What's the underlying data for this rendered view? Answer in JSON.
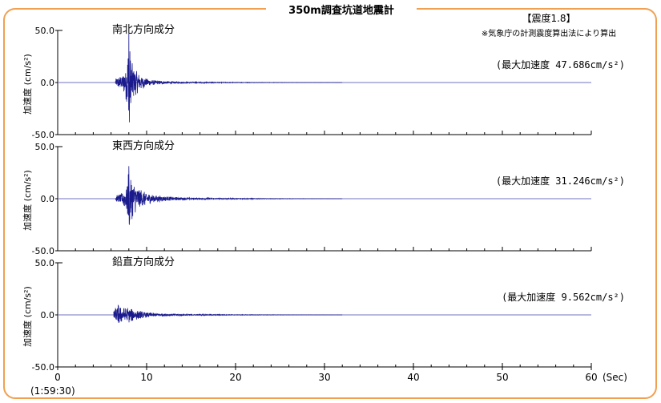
{
  "title": "350m調査坑道地震計",
  "intensity": {
    "label": "【震度1.8】",
    "note": "※気象庁の計測震度算出法により算出"
  },
  "colors": {
    "frame": "#f0a050",
    "waveform": "#1a1a8c",
    "baseline": "#7070c0",
    "grid": "#000000"
  },
  "x_axis": {
    "ticks": [
      "0",
      "10",
      "20",
      "30",
      "40",
      "50",
      "60"
    ],
    "unit": "(Sec)",
    "start_time": "(1:59:30)"
  },
  "chart_data": [
    {
      "type": "line",
      "title": "南北方向成分",
      "ylabel": "加速度 (cm/s²)",
      "max_label": "(最大加速度 47.686cm/s²)",
      "peak": 47.686,
      "xlim": [
        0,
        60
      ],
      "ylim": [
        -50,
        50
      ],
      "yticks": [
        "50.0",
        "0.0",
        "-50.0"
      ],
      "event_start": 6.5,
      "peak_time": 8.0,
      "envelope": [
        [
          6.5,
          4
        ],
        [
          7.3,
          8
        ],
        [
          7.8,
          20
        ],
        [
          8.0,
          47.686
        ],
        [
          8.2,
          25
        ],
        [
          8.6,
          14
        ],
        [
          9.2,
          8
        ],
        [
          10.0,
          4
        ],
        [
          11.0,
          2
        ],
        [
          12.5,
          1.2
        ],
        [
          15.0,
          0.6
        ],
        [
          20.0,
          0.3
        ],
        [
          25.0,
          0.15
        ]
      ]
    },
    {
      "type": "line",
      "title": "東西方向成分",
      "ylabel": "加速度 (cm/s²)",
      "max_label": "(最大加速度 31.246cm/s²)",
      "peak": 31.246,
      "xlim": [
        0,
        60
      ],
      "ylim": [
        -50,
        50
      ],
      "yticks": [
        "50.0",
        "0.0",
        "-50.0"
      ],
      "event_start": 6.5,
      "peak_time": 8.0,
      "envelope": [
        [
          6.5,
          3
        ],
        [
          7.3,
          6
        ],
        [
          7.8,
          15
        ],
        [
          8.0,
          31.246
        ],
        [
          8.2,
          22
        ],
        [
          8.6,
          16
        ],
        [
          9.2,
          10
        ],
        [
          10.0,
          6
        ],
        [
          11.0,
          3.5
        ],
        [
          12.5,
          2
        ],
        [
          15.0,
          1
        ],
        [
          20.0,
          0.5
        ],
        [
          25.0,
          0.2
        ]
      ]
    },
    {
      "type": "line",
      "title": "鉛直方向成分",
      "ylabel": "加速度 (cm/s²)",
      "max_label": "(最大加速度 9.562cm/s²)",
      "peak": 9.562,
      "xlim": [
        0,
        60
      ],
      "ylim": [
        -50,
        50
      ],
      "yticks": [
        "50.0",
        "0.0",
        "-50.0"
      ],
      "event_start": 6.3,
      "peak_time": 6.8,
      "envelope": [
        [
          6.3,
          5
        ],
        [
          6.8,
          9.562
        ],
        [
          7.3,
          7
        ],
        [
          8.0,
          7.5
        ],
        [
          9.0,
          4.5
        ],
        [
          10.0,
          2.5
        ],
        [
          11.5,
          1.5
        ],
        [
          13.0,
          1
        ],
        [
          15.0,
          0.6
        ],
        [
          20.0,
          0.3
        ],
        [
          25.0,
          0.15
        ]
      ]
    }
  ]
}
